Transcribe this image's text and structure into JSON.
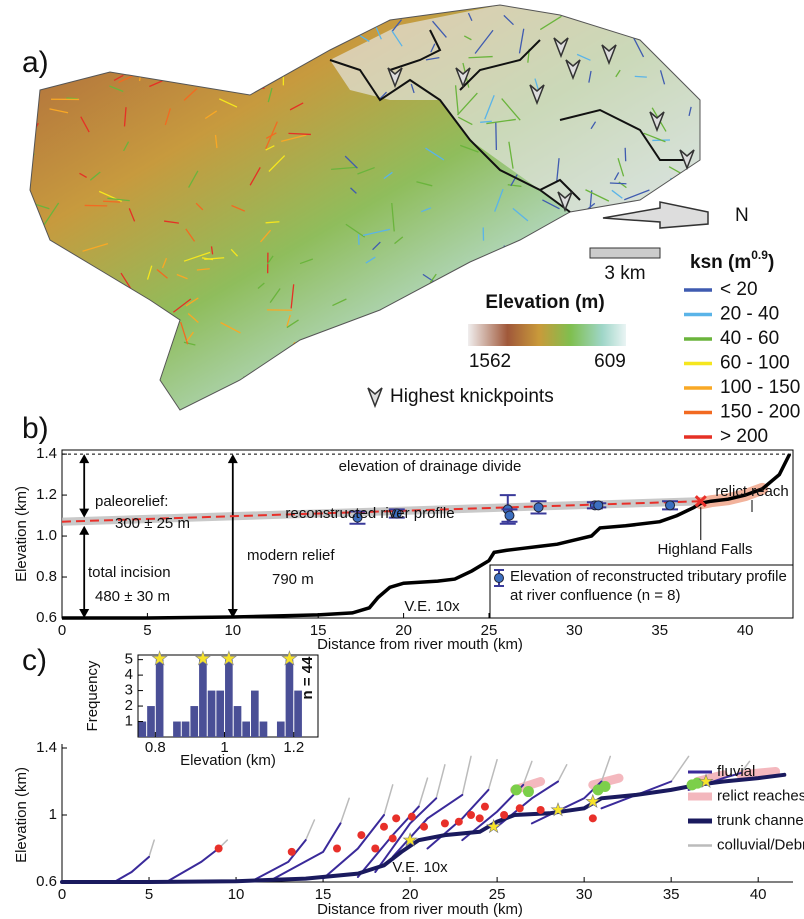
{
  "panel_a": {
    "label": "a)",
    "north": "N",
    "scale_bar": "3 km",
    "elevation_title": "Elevation (m)",
    "elevation_range": [
      1562,
      609
    ],
    "knickpoint_legend": "Highest knickpoints",
    "ksn_legend": {
      "title": [
        "ksn (m",
        "0.9",
        ")"
      ],
      "items": [
        {
          "label": "< 20",
          "color": "#3f5bb0"
        },
        {
          "label": "20 - 40",
          "color": "#5ab4e8"
        },
        {
          "label": "40 - 60",
          "color": "#6ab43c"
        },
        {
          "label": "60 - 100",
          "color": "#f5e61e"
        },
        {
          "label": "100 - 150",
          "color": "#f9a825"
        },
        {
          "label": "150 - 200",
          "color": "#f26a21"
        },
        {
          "label": "> 200",
          "color": "#e53025"
        }
      ]
    }
  },
  "chart_data": [
    {
      "type": "line",
      "panel_label": "b)",
      "x_label": "Distance  from river mouth (km)",
      "y_label": "Elevation (km)",
      "xlim": [
        0,
        42.8
      ],
      "ylim": [
        0.6,
        1.42
      ],
      "xticks": [
        0,
        5,
        10,
        15,
        20,
        25,
        30,
        35,
        40
      ],
      "yticks": [
        0.6,
        0.8,
        {
          "value": 1,
          "label": "1.0"
        },
        1.2,
        1.4
      ],
      "divide": {
        "label": "elevation of drainage divide",
        "value": 1.4
      },
      "band": {
        "color": "#bbbbbb",
        "x": [
          0,
          37.4
        ],
        "low": [
          1.05,
          1.15
        ],
        "high": [
          1.09,
          1.19
        ]
      },
      "relict": {
        "color": "#f2b39c",
        "x": [
          37.4,
          38,
          39,
          40,
          41
        ],
        "values": [
          1.16,
          1.17,
          1.18,
          1.2,
          1.23
        ]
      },
      "series": [
        {
          "color": "#000000",
          "x": [
            0,
            5,
            10,
            15,
            17,
            18,
            18.5,
            19.2,
            20,
            22,
            23,
            24,
            25,
            25.3,
            26,
            27,
            28,
            29,
            30,
            31,
            31.5,
            33,
            35,
            36,
            37,
            37.4,
            38,
            39,
            40,
            41,
            42,
            42.6
          ],
          "values": [
            0.6,
            0.6,
            0.605,
            0.615,
            0.625,
            0.65,
            0.7,
            0.75,
            0.77,
            0.78,
            0.79,
            0.83,
            0.88,
            0.92,
            0.93,
            0.94,
            0.95,
            0.96,
            0.98,
            1.0,
            1.04,
            1.05,
            1.07,
            1.1,
            1.14,
            1.16,
            1.17,
            1.18,
            1.2,
            1.23,
            1.3,
            1.4
          ]
        },
        {
          "color": "#e8302a",
          "dashed": true,
          "x": [
            0,
            37.4
          ],
          "values": [
            1.07,
            1.17
          ]
        },
        {
          "name": "Elevation of reconstructed tributary profile at river confluence (n = 8)",
          "color": "#3c6fc0",
          "x": [
            17.3,
            19.6,
            26.1,
            26.2,
            27.9,
            31.2,
            31.4,
            35.6
          ],
          "values": [
            1.09,
            1.11,
            1.13,
            1.1,
            1.14,
            1.15,
            1.15,
            1.15
          ],
          "errors": [
            0.03,
            0.02,
            0.07,
            0.03,
            0.03,
            0.015,
            0.01,
            0.02
          ]
        }
      ],
      "highland_falls": {
        "x": 37.4,
        "value": 1.17,
        "color": "#e8302a"
      },
      "annotations": {
        "paleorelief": "paleorelief:",
        "paleorelief_value": "300 ± 25 m",
        "reconstructed": "reconstructed river profile",
        "relict_reach": "relict reach",
        "highland_falls": "Highland Falls",
        "total_incision": "total incision",
        "incision_value": "480 ± 30 m",
        "modern_relief": "modern relief",
        "relief_value": "790 m",
        "ve": "V.E. 10x"
      }
    },
    {
      "type": "line",
      "panel_label": "c)",
      "x_label": "Distance from river mouth (km)",
      "y_label": "Elevation (km)",
      "xlim": [
        0,
        42
      ],
      "ylim": [
        0.6,
        1.4
      ],
      "xticks": [
        0,
        5,
        10,
        15,
        20,
        25,
        30,
        35,
        40
      ],
      "yticks": [
        0.6,
        1,
        1.4
      ],
      "ve": "V.E. 10x",
      "series": [
        {
          "name": "fluvial",
          "color": "#3a2a9a",
          "width": 2,
          "x": [
            3,
            4,
            5,
            null,
            6,
            8,
            9,
            null,
            11,
            13,
            14,
            null,
            12,
            15,
            16,
            null,
            15,
            17,
            18.5,
            null,
            17,
            19,
            20.5,
            null,
            18,
            20,
            21.5,
            null,
            19,
            21,
            23,
            null,
            21,
            23,
            24.5,
            null,
            23,
            25,
            26.5,
            null,
            25,
            27,
            28.5,
            null,
            27,
            30,
            31,
            null,
            31,
            33,
            35,
            null,
            36,
            38,
            39
          ],
          "values": [
            0.6,
            0.66,
            0.75,
            null,
            0.6,
            0.72,
            0.8,
            null,
            0.61,
            0.72,
            0.85,
            null,
            0.61,
            0.78,
            0.95,
            null,
            0.62,
            0.8,
            1.0,
            null,
            0.63,
            0.88,
            1.05,
            null,
            0.66,
            0.95,
            1.1,
            null,
            0.75,
            0.98,
            1.12,
            null,
            0.8,
            0.98,
            1.15,
            null,
            0.85,
            1.02,
            1.18,
            null,
            0.93,
            1.1,
            1.2,
            null,
            0.95,
            1.1,
            1.2,
            null,
            1.04,
            1.12,
            1.2,
            null,
            1.15,
            1.22,
            1.25
          ]
        },
        {
          "name": "relict reaches",
          "color": "#f0a0a8",
          "width": 9,
          "x": [
            26,
            27.5,
            null,
            30.5,
            32,
            null,
            36.5,
            38,
            null,
            39,
            41
          ],
          "values": [
            1.15,
            1.2,
            null,
            1.18,
            1.22,
            null,
            1.2,
            1.24,
            null,
            1.24,
            1.26
          ]
        },
        {
          "name": "trunk channel",
          "color": "#1a1a5e",
          "width": 4,
          "x": [
            0,
            5,
            10,
            14,
            17,
            18.5,
            19.5,
            20.5,
            22,
            24,
            25,
            26,
            28,
            30,
            31,
            33,
            35,
            36.5,
            38,
            40,
            41.5
          ],
          "values": [
            0.6,
            0.6,
            0.605,
            0.62,
            0.65,
            0.7,
            0.78,
            0.85,
            0.88,
            0.9,
            0.96,
            1.0,
            1.01,
            1.04,
            1.1,
            1.12,
            1.15,
            1.18,
            1.2,
            1.22,
            1.24
          ]
        },
        {
          "name": "colluvial/Debris flow",
          "color": "#bbbbbb",
          "width": 1.5,
          "x": [
            5,
            5.3,
            null,
            9,
            9.5,
            null,
            14,
            14.5,
            null,
            16,
            16.5,
            null,
            18.5,
            19,
            null,
            20.5,
            21,
            null,
            21.5,
            22,
            null,
            23,
            23.5,
            null,
            24.5,
            25,
            null,
            26.5,
            27,
            null,
            28.5,
            29,
            null,
            31,
            31.5,
            null,
            35,
            36,
            null,
            39,
            39.5
          ],
          "values": [
            0.75,
            0.85,
            null,
            0.8,
            0.85,
            null,
            0.85,
            0.97,
            null,
            0.95,
            1.1,
            null,
            1.0,
            1.18,
            null,
            1.05,
            1.22,
            null,
            1.1,
            1.3,
            null,
            1.12,
            1.35,
            null,
            1.15,
            1.33,
            null,
            1.18,
            1.32,
            null,
            1.2,
            1.3,
            null,
            1.2,
            1.35,
            null,
            1.2,
            1.35,
            null,
            1.25,
            1.32
          ]
        }
      ],
      "markers": [
        {
          "shape": "circle",
          "color": "#e8302a",
          "x": [
            9,
            13.2,
            15.8,
            17.2,
            18.5,
            19.2,
            20.1,
            20.8,
            22,
            22.8,
            23.5,
            24.3,
            25.4,
            26.3,
            27.5,
            30.5,
            19,
            18,
            24
          ],
          "values": [
            0.8,
            0.78,
            0.8,
            0.88,
            0.93,
            0.98,
            0.99,
            0.93,
            0.95,
            0.96,
            1.0,
            1.05,
            1.0,
            1.04,
            1.03,
            0.98,
            0.86,
            0.8,
            0.98
          ]
        },
        {
          "shape": "circle",
          "color": "#7ccf4a",
          "x": [
            26.1,
            26.8,
            30.8,
            31.2,
            36.2,
            36.5
          ],
          "values": [
            1.15,
            1.14,
            1.15,
            1.17,
            1.18,
            1.19
          ]
        },
        {
          "shape": "star",
          "color": "#f7e32a",
          "x": [
            20,
            24.8,
            28.5,
            30.5,
            37
          ],
          "values": [
            0.85,
            0.93,
            1.03,
            1.08,
            1.2
          ]
        }
      ]
    },
    {
      "type": "histogram",
      "x_label": "Elevation (km)",
      "y_label": "Frequency",
      "n_label": "n = 44",
      "color": "#4a4f96",
      "bins": [
        0.75,
        0.775,
        0.8,
        0.825,
        0.85,
        0.875,
        0.9,
        0.925,
        0.95,
        0.975,
        1.0,
        1.025,
        1.05,
        1.075,
        1.1,
        1.125,
        1.15,
        1.175,
        1.2,
        1.225,
        1.25
      ],
      "values": [
        1,
        2,
        5,
        0,
        1,
        1,
        2,
        5,
        3,
        3,
        5,
        2,
        1,
        3,
        1,
        0,
        1,
        5,
        3,
        0
      ],
      "xlim": [
        0.75,
        1.27
      ],
      "ylim": [
        0,
        5.3
      ],
      "xticks": [
        0.8,
        1,
        1.2
      ],
      "yticks": [
        1,
        2,
        3,
        4,
        5
      ]
    }
  ]
}
